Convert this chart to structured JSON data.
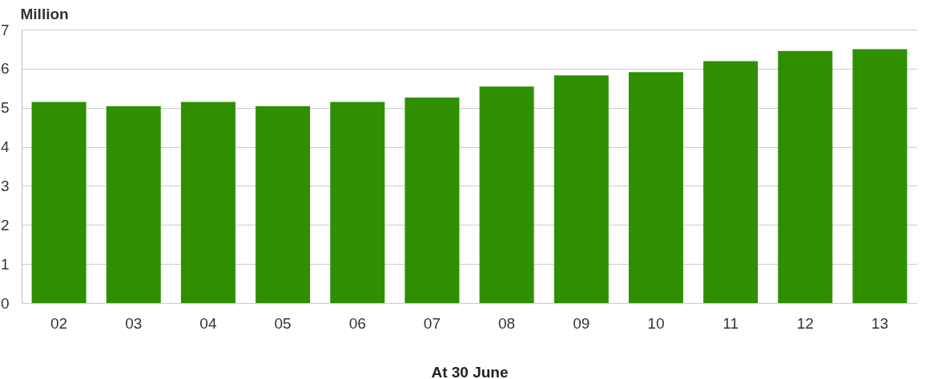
{
  "chart_data": {
    "type": "bar",
    "ylabel": "Million",
    "xlabel": "At 30 June",
    "categories": [
      "02",
      "03",
      "04",
      "05",
      "06",
      "07",
      "08",
      "09",
      "10",
      "11",
      "12",
      "13"
    ],
    "values": [
      5.15,
      5.04,
      5.15,
      5.04,
      5.15,
      5.26,
      5.54,
      5.83,
      5.91,
      6.19,
      6.45,
      6.5
    ],
    "color": "#2f8f00",
    "ylim": [
      0,
      7
    ],
    "yticks": [
      0,
      1,
      2,
      3,
      4,
      5,
      6,
      7
    ],
    "grid": "y"
  }
}
